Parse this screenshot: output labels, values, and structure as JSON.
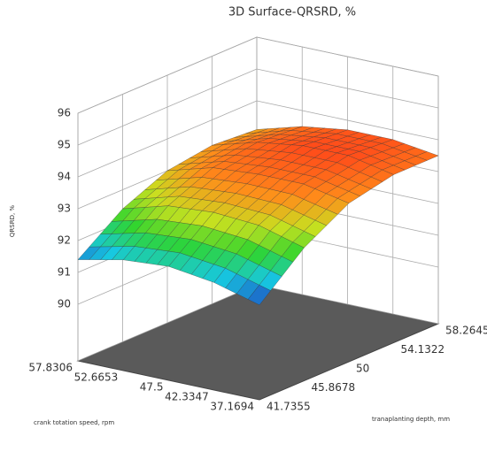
{
  "chart_data": {
    "type": "surface",
    "title": "3D Surface-QRSRD, %",
    "zlabel": "QRSRD, %",
    "xlabel": "crank totation speed, rpm",
    "ylabel": "tranaplanting depth, mm",
    "x": [
      57.8306,
      52.6653,
      47.5,
      42.3347,
      37.1694
    ],
    "y": [
      41.7355,
      45.8678,
      50,
      54.1322,
      58.2645
    ],
    "z": [
      [
        91.4,
        92.4,
        93.0,
        93.2,
        93.1
      ],
      [
        91.7,
        92.8,
        93.4,
        93.6,
        93.5
      ],
      [
        91.8,
        92.9,
        93.5,
        93.8,
        93.7
      ],
      [
        91.6,
        92.8,
        93.5,
        93.8,
        93.7
      ],
      [
        91.2,
        92.4,
        93.2,
        93.5,
        93.5
      ]
    ],
    "xlim": [
      57.8306,
      37.1694
    ],
    "ylim": [
      41.7355,
      58.2645
    ],
    "zlim": [
      90,
      96
    ],
    "xticks": [
      57.8306,
      52.6653,
      47.5,
      42.3347,
      37.1694
    ],
    "yticks": [
      41.7355,
      45.8678,
      50,
      54.1322,
      58.2645
    ],
    "zticks": [
      90,
      91,
      92,
      93,
      94,
      95,
      96
    ],
    "colorscale": [
      "#1f3fbf",
      "#17c8e0",
      "#2fd52f",
      "#c8e020",
      "#ff8c1a",
      "#ff4a1a"
    ],
    "floor_color": "#5a5a5a"
  }
}
